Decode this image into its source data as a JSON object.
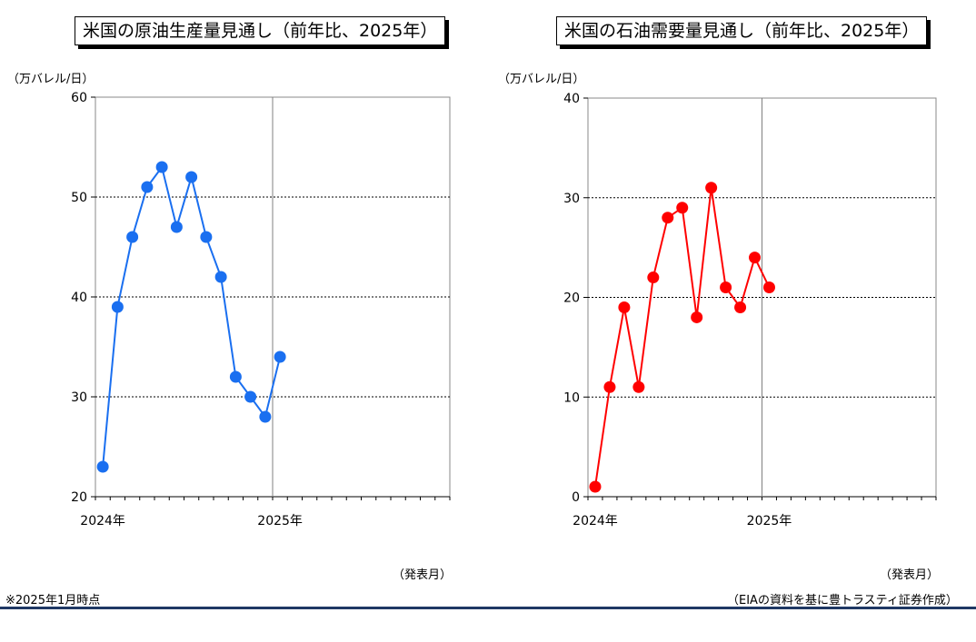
{
  "chart_data": [
    {
      "type": "line",
      "title": "米国の原油生産量見通し（前年比、2025年）",
      "ylabel": "（万バレル/日）",
      "xlabel": "（発表月）",
      "ylim": [
        20,
        60
      ],
      "yticks": [
        "20",
        "30",
        "40",
        "50",
        "60"
      ],
      "x_tick_labels": [
        "2024年",
        "2025年"
      ],
      "x": [
        "2024-01",
        "2024-02",
        "2024-03",
        "2024-04",
        "2024-05",
        "2024-06",
        "2024-07",
        "2024-08",
        "2024-09",
        "2024-10",
        "2024-11",
        "2024-12",
        "2025-01"
      ],
      "series": [
        {
          "values": [
            23,
            39,
            46,
            51,
            53,
            47,
            52,
            46,
            42,
            32,
            30,
            28,
            34
          ]
        }
      ],
      "color": "#1a6ff0",
      "grid": "dotted horizontal",
      "legend": "none"
    },
    {
      "type": "line",
      "title": "米国の石油需要量見通し（前年比、2025年）",
      "ylabel": "（万バレル/日）",
      "xlabel": "（発表月）",
      "ylim": [
        0,
        40
      ],
      "yticks": [
        "0",
        "10",
        "20",
        "30",
        "40"
      ],
      "x_tick_labels": [
        "2024年",
        "2025年"
      ],
      "x": [
        "2024-01",
        "2024-02",
        "2024-03",
        "2024-04",
        "2024-05",
        "2024-06",
        "2024-07",
        "2024-08",
        "2024-09",
        "2024-10",
        "2024-11",
        "2024-12",
        "2025-01"
      ],
      "series": [
        {
          "values": [
            1,
            11,
            19,
            11,
            22,
            28,
            29,
            18,
            31,
            21,
            19,
            24,
            21
          ]
        }
      ],
      "color": "#ff0000",
      "grid": "dotted horizontal",
      "legend": "none"
    }
  ],
  "footnote": "※2025年1月時点",
  "source": "（EIAの資料を基に豊トラスティ証券作成）"
}
